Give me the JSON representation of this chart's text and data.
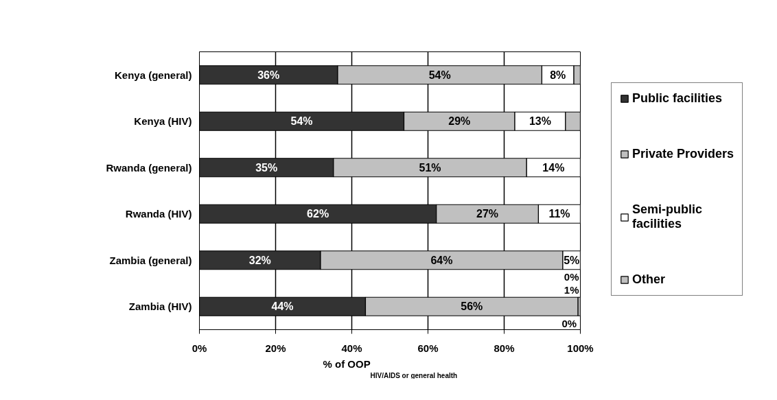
{
  "chart_data": {
    "type": "bar",
    "orientation": "horizontal",
    "stacked": true,
    "categories": [
      "Kenya (general)",
      "Kenya (HIV)",
      "Rwanda (general)",
      "Rwanda (HIV)",
      "Zambia (general)",
      "Zambia (HIV)"
    ],
    "series": [
      {
        "name": "Public facilities",
        "color": "#333333",
        "values": [
          36.3,
          53.7,
          35.2,
          62.2,
          31.8,
          43.6
        ],
        "value_labels": [
          "36%",
          "54%",
          "35%",
          "62%",
          "32%",
          "44%"
        ]
      },
      {
        "name": "Private Providers",
        "color": "#c0c0c0",
        "values": [
          53.6,
          29.1,
          50.7,
          26.8,
          63.6,
          55.8
        ],
        "value_labels": [
          "54%",
          "29%",
          "51%",
          "27%",
          "64%",
          "56%"
        ]
      },
      {
        "name": "Semi-public facilities",
        "color": "#ffffff",
        "values": [
          8.4,
          13.3,
          14.1,
          11,
          4.6,
          0
        ],
        "value_labels": [
          "8%",
          "13%",
          "14%",
          "11%",
          "5%",
          "0%"
        ]
      },
      {
        "name": "Other",
        "color": "#c0c0c0",
        "values": [
          1.7,
          3.9,
          0,
          0,
          0,
          0.6
        ],
        "value_labels": [
          null,
          null,
          null,
          null,
          "0%",
          "1%"
        ]
      }
    ],
    "xlabel": "% of OOP$_{HIV/AIDS or general health}$",
    "xlim": [
      0,
      100
    ],
    "xticks": [
      {
        "value": 0,
        "label": "0%"
      },
      {
        "value": 20,
        "label": "20%"
      },
      {
        "value": 40,
        "label": "40%"
      },
      {
        "value": 60,
        "label": "60%"
      },
      {
        "value": 80,
        "label": "80%"
      },
      {
        "value": 100,
        "label": "100%"
      }
    ],
    "grid": "x",
    "legend": "right"
  }
}
